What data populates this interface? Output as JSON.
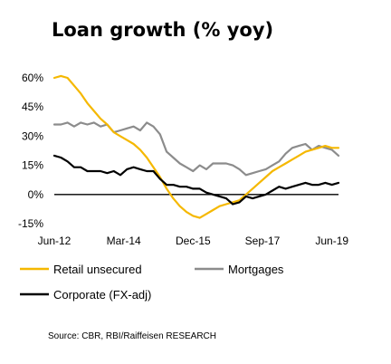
{
  "chart_data": {
    "type": "line",
    "title": "Loan growth (% yoy)",
    "source": "Source: CBR, RBI/Raiffeisen RESEARCH",
    "x_range": [
      "2012-06",
      "2019-08"
    ],
    "ylim": [
      -15,
      60
    ],
    "ytick_values": [
      -15,
      0,
      15,
      30,
      45,
      60
    ],
    "ytick_labels": [
      "-15%",
      "0%",
      "15%",
      "30%",
      "45%",
      "60%"
    ],
    "xtick_values": [
      "2012-06",
      "2014-03",
      "2015-12",
      "2017-09",
      "2019-06"
    ],
    "xtick_labels": [
      "Jun-12",
      "Mar-14",
      "Dec-15",
      "Sep-17",
      "Jun-19"
    ],
    "grid": false,
    "legend_position": "bottom",
    "series": [
      {
        "name": "Retail unsecured",
        "color": "#F5B800",
        "points": [
          [
            "2012-06",
            60
          ],
          [
            "2012-08",
            61
          ],
          [
            "2012-10",
            60
          ],
          [
            "2012-12",
            56
          ],
          [
            "2013-02",
            52
          ],
          [
            "2013-04",
            47
          ],
          [
            "2013-06",
            43
          ],
          [
            "2013-08",
            39
          ],
          [
            "2013-10",
            36
          ],
          [
            "2013-12",
            32
          ],
          [
            "2014-02",
            30
          ],
          [
            "2014-04",
            28
          ],
          [
            "2014-06",
            26
          ],
          [
            "2014-08",
            23
          ],
          [
            "2014-10",
            19
          ],
          [
            "2014-12",
            14
          ],
          [
            "2015-02",
            9
          ],
          [
            "2015-04",
            3
          ],
          [
            "2015-06",
            -2
          ],
          [
            "2015-08",
            -6
          ],
          [
            "2015-10",
            -9
          ],
          [
            "2015-12",
            -11
          ],
          [
            "2016-02",
            -12
          ],
          [
            "2016-04",
            -10
          ],
          [
            "2016-06",
            -8
          ],
          [
            "2016-08",
            -6
          ],
          [
            "2016-10",
            -5
          ],
          [
            "2016-12",
            -4
          ],
          [
            "2017-02",
            -3
          ],
          [
            "2017-04",
            0
          ],
          [
            "2017-06",
            3
          ],
          [
            "2017-08",
            6
          ],
          [
            "2017-10",
            9
          ],
          [
            "2017-12",
            12
          ],
          [
            "2018-02",
            14
          ],
          [
            "2018-04",
            16
          ],
          [
            "2018-06",
            18
          ],
          [
            "2018-08",
            20
          ],
          [
            "2018-10",
            22
          ],
          [
            "2018-12",
            23
          ],
          [
            "2019-02",
            24
          ],
          [
            "2019-04",
            25
          ],
          [
            "2019-06",
            24
          ],
          [
            "2019-08",
            24
          ]
        ]
      },
      {
        "name": "Mortgages",
        "color": "#8C8C8C",
        "points": [
          [
            "2012-06",
            36
          ],
          [
            "2012-08",
            36
          ],
          [
            "2012-10",
            37
          ],
          [
            "2012-12",
            35
          ],
          [
            "2013-02",
            37
          ],
          [
            "2013-04",
            36
          ],
          [
            "2013-06",
            37
          ],
          [
            "2013-08",
            35
          ],
          [
            "2013-10",
            36
          ],
          [
            "2013-12",
            32
          ],
          [
            "2014-02",
            33
          ],
          [
            "2014-04",
            34
          ],
          [
            "2014-06",
            35
          ],
          [
            "2014-08",
            33
          ],
          [
            "2014-10",
            37
          ],
          [
            "2014-12",
            35
          ],
          [
            "2015-02",
            31
          ],
          [
            "2015-04",
            22
          ],
          [
            "2015-06",
            19
          ],
          [
            "2015-08",
            16
          ],
          [
            "2015-10",
            14
          ],
          [
            "2015-12",
            12
          ],
          [
            "2016-02",
            15
          ],
          [
            "2016-04",
            13
          ],
          [
            "2016-06",
            16
          ],
          [
            "2016-08",
            16
          ],
          [
            "2016-10",
            16
          ],
          [
            "2016-12",
            15
          ],
          [
            "2017-02",
            13
          ],
          [
            "2017-04",
            10
          ],
          [
            "2017-06",
            11
          ],
          [
            "2017-08",
            12
          ],
          [
            "2017-10",
            13
          ],
          [
            "2017-12",
            15
          ],
          [
            "2018-02",
            17
          ],
          [
            "2018-04",
            21
          ],
          [
            "2018-06",
            24
          ],
          [
            "2018-08",
            25
          ],
          [
            "2018-10",
            26
          ],
          [
            "2018-12",
            23
          ],
          [
            "2019-02",
            25
          ],
          [
            "2019-04",
            24
          ],
          [
            "2019-06",
            23
          ],
          [
            "2019-08",
            20
          ]
        ]
      },
      {
        "name": "Corporate (FX-adj)",
        "color": "#000000",
        "points": [
          [
            "2012-06",
            20
          ],
          [
            "2012-08",
            19
          ],
          [
            "2012-10",
            17
          ],
          [
            "2012-12",
            14
          ],
          [
            "2013-02",
            14
          ],
          [
            "2013-04",
            12
          ],
          [
            "2013-06",
            12
          ],
          [
            "2013-08",
            12
          ],
          [
            "2013-10",
            11
          ],
          [
            "2013-12",
            12
          ],
          [
            "2014-02",
            10
          ],
          [
            "2014-04",
            13
          ],
          [
            "2014-06",
            14
          ],
          [
            "2014-08",
            13
          ],
          [
            "2014-10",
            12
          ],
          [
            "2014-12",
            12
          ],
          [
            "2015-02",
            8
          ],
          [
            "2015-04",
            5
          ],
          [
            "2015-06",
            5
          ],
          [
            "2015-08",
            4
          ],
          [
            "2015-10",
            4
          ],
          [
            "2015-12",
            3
          ],
          [
            "2016-02",
            3
          ],
          [
            "2016-04",
            1
          ],
          [
            "2016-06",
            0
          ],
          [
            "2016-08",
            -1
          ],
          [
            "2016-10",
            -2
          ],
          [
            "2016-12",
            -5
          ],
          [
            "2017-02",
            -4
          ],
          [
            "2017-04",
            -1
          ],
          [
            "2017-06",
            -2
          ],
          [
            "2017-08",
            -1
          ],
          [
            "2017-10",
            0
          ],
          [
            "2017-12",
            2
          ],
          [
            "2018-02",
            4
          ],
          [
            "2018-04",
            3
          ],
          [
            "2018-06",
            4
          ],
          [
            "2018-08",
            5
          ],
          [
            "2018-10",
            6
          ],
          [
            "2018-12",
            5
          ],
          [
            "2019-02",
            5
          ],
          [
            "2019-04",
            6
          ],
          [
            "2019-06",
            5
          ],
          [
            "2019-08",
            6
          ]
        ]
      }
    ]
  }
}
